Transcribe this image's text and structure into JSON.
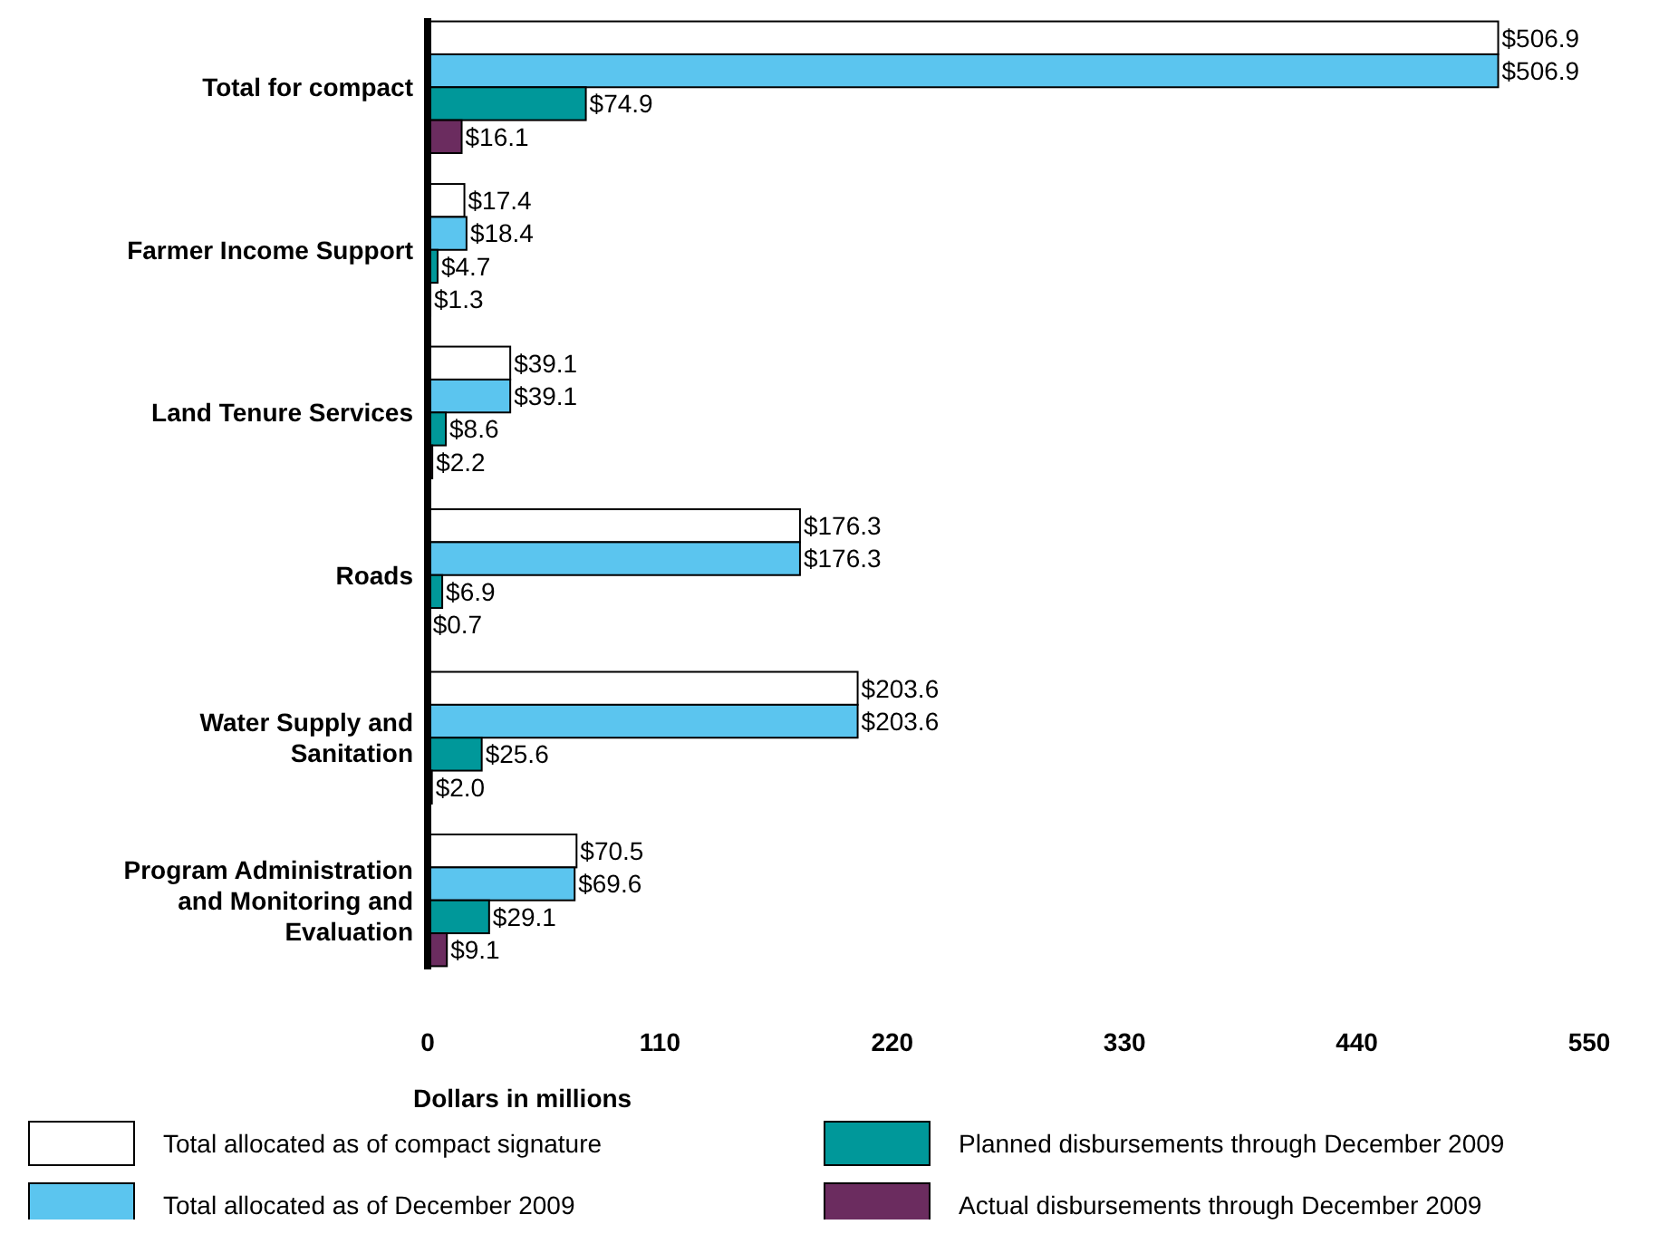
{
  "chart_data": {
    "type": "bar",
    "orientation": "horizontal",
    "xlabel": "Dollars in millions",
    "categories": [
      "Total for compact",
      "Farmer Income Support",
      "Land Tenure Services",
      "Roads",
      "Water Supply and Sanitation",
      "Program Administration and Monitoring and Evaluation"
    ],
    "xlim": [
      0,
      550
    ],
    "xticks": [
      0,
      110,
      220,
      330,
      440,
      550
    ],
    "legend": "bottom",
    "series": [
      {
        "name": "Total allocated as of compact signature",
        "color": "#ffffff",
        "values": [
          506.9,
          17.4,
          39.1,
          176.3,
          203.6,
          70.5
        ],
        "value_labels": [
          "$506.9",
          "$17.4",
          "$39.1",
          "$176.3",
          "$203.6",
          "$70.5"
        ]
      },
      {
        "name": "Total allocated as of December 2009",
        "color": "#5bc5ef",
        "values": [
          506.9,
          18.4,
          39.1,
          176.3,
          203.6,
          69.6
        ],
        "value_labels": [
          "$506.9",
          "$18.4",
          "$39.1",
          "$176.3",
          "$203.6",
          "$69.6"
        ]
      },
      {
        "name": "Planned disbursements through December 2009",
        "color": "#00989a",
        "values": [
          74.9,
          4.7,
          8.6,
          6.9,
          25.6,
          29.1
        ],
        "value_labels": [
          "$74.9",
          "$4.7",
          "$8.6",
          "$6.9",
          "$25.6",
          "$29.1"
        ]
      },
      {
        "name": "Actual disbursements through December 2009",
        "color": "#6b2c5f",
        "values": [
          16.1,
          1.3,
          2.2,
          0.7,
          2.0,
          9.1
        ],
        "value_labels": [
          "$16.1",
          "$1.3",
          "$2.2",
          "$0.7",
          "$2.0",
          "$9.1"
        ]
      }
    ]
  }
}
